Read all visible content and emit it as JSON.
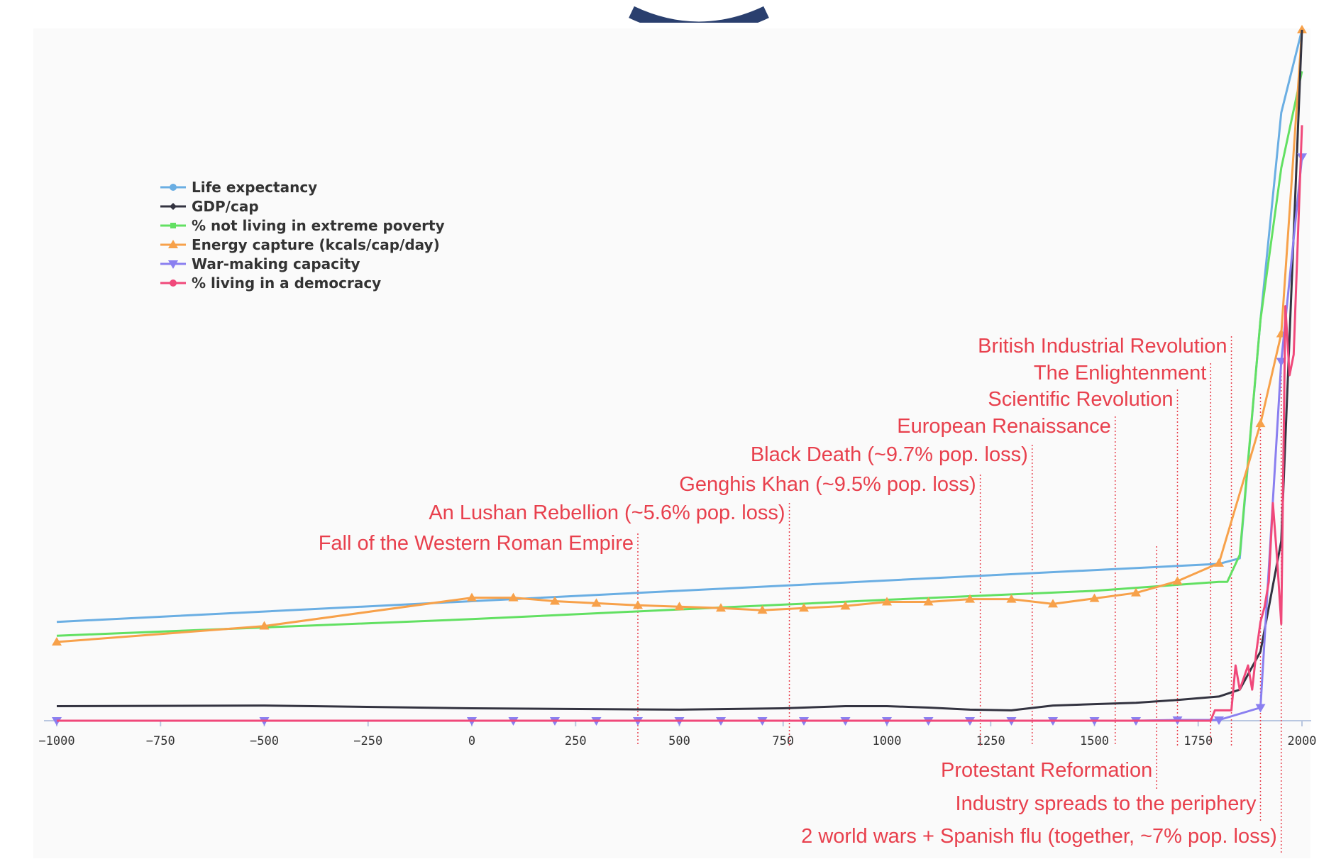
{
  "colors": {
    "life": "#6aaee3",
    "gdp": "#333340",
    "poverty": "#62e062",
    "energy": "#f7a14a",
    "war": "#8a7ff0",
    "democracy": "#f0487a",
    "event": "#e8404d",
    "axis": "#b9c7e0"
  },
  "chart_data": {
    "type": "line",
    "title": "",
    "xlabel": "",
    "ylabel": "",
    "xlim": [
      -1000,
      2000
    ],
    "x_ticks": [
      -1000,
      -750,
      -500,
      -250,
      0,
      250,
      500,
      750,
      1000,
      1250,
      1500,
      1750,
      2000
    ],
    "y_axis_shown": false,
    "grid": false,
    "legend_position": "top-left",
    "series": [
      {
        "name": "Life expectancy",
        "key": "life",
        "marker": "circle",
        "points": [
          [
            -1000,
            14.3
          ],
          [
            1800,
            22.7
          ],
          [
            1850,
            23.5
          ],
          [
            1900,
            58
          ],
          [
            1950,
            88
          ],
          [
            2000,
            100
          ]
        ]
      },
      {
        "name": "GDP/cap",
        "key": "gdp",
        "marker": "diamond",
        "points": [
          [
            -1000,
            2.1
          ],
          [
            -500,
            2.2
          ],
          [
            0,
            1.8
          ],
          [
            500,
            1.6
          ],
          [
            750,
            1.8
          ],
          [
            900,
            2.1
          ],
          [
            1000,
            2.1
          ],
          [
            1100,
            1.9
          ],
          [
            1200,
            1.6
          ],
          [
            1300,
            1.5
          ],
          [
            1400,
            2.2
          ],
          [
            1500,
            2.4
          ],
          [
            1600,
            2.6
          ],
          [
            1700,
            3.0
          ],
          [
            1800,
            3.5
          ],
          [
            1850,
            4.5
          ],
          [
            1900,
            10
          ],
          [
            1950,
            26
          ],
          [
            2000,
            100
          ]
        ]
      },
      {
        "name": "% not living in extreme poverty",
        "key": "poverty",
        "marker": "square",
        "points": [
          [
            -1000,
            12.3
          ],
          [
            0,
            14.7
          ],
          [
            1000,
            17.5
          ],
          [
            1500,
            18.8
          ],
          [
            1800,
            20.1
          ],
          [
            1820,
            20.1
          ],
          [
            1850,
            24
          ],
          [
            1900,
            58
          ],
          [
            1950,
            80
          ],
          [
            2000,
            94
          ]
        ]
      },
      {
        "name": "Energy capture (kcals/cap/day)",
        "key": "energy",
        "marker": "triangle-up",
        "points": [
          [
            -1000,
            11.4
          ],
          [
            -500,
            13.7
          ],
          [
            0,
            17.8
          ],
          [
            100,
            17.8
          ],
          [
            200,
            17.3
          ],
          [
            300,
            17.0
          ],
          [
            400,
            16.7
          ],
          [
            500,
            16.5
          ],
          [
            600,
            16.3
          ],
          [
            700,
            16.0
          ],
          [
            800,
            16.3
          ],
          [
            900,
            16.6
          ],
          [
            1000,
            17.2
          ],
          [
            1100,
            17.2
          ],
          [
            1200,
            17.6
          ],
          [
            1300,
            17.6
          ],
          [
            1400,
            16.9
          ],
          [
            1500,
            17.7
          ],
          [
            1600,
            18.5
          ],
          [
            1700,
            20.2
          ],
          [
            1800,
            22.8
          ],
          [
            1900,
            43
          ],
          [
            1950,
            56
          ],
          [
            2000,
            100
          ]
        ]
      },
      {
        "name": "War-making capacity",
        "key": "war",
        "marker": "triangle-down",
        "points": [
          [
            -1000,
            0
          ],
          [
            -500,
            0
          ],
          [
            0,
            0
          ],
          [
            100,
            0
          ],
          [
            200,
            0
          ],
          [
            300,
            0
          ],
          [
            400,
            0
          ],
          [
            500,
            0
          ],
          [
            600,
            0
          ],
          [
            700,
            0
          ],
          [
            800,
            0
          ],
          [
            900,
            0
          ],
          [
            1000,
            0
          ],
          [
            1100,
            0
          ],
          [
            1200,
            0
          ],
          [
            1300,
            0
          ],
          [
            1400,
            0
          ],
          [
            1500,
            0
          ],
          [
            1600,
            0
          ],
          [
            1700,
            0.1
          ],
          [
            1800,
            0.1
          ],
          [
            1900,
            1.9
          ],
          [
            1950,
            52
          ],
          [
            2000,
            81.6
          ]
        ]
      },
      {
        "name": "% living in a democracy",
        "key": "democracy",
        "marker": "circle",
        "points": [
          [
            -1000,
            0
          ],
          [
            1780,
            0
          ],
          [
            1790,
            1.5
          ],
          [
            1830,
            1.5
          ],
          [
            1840,
            8
          ],
          [
            1850,
            4.5
          ],
          [
            1870,
            8
          ],
          [
            1880,
            4.5
          ],
          [
            1890,
            10
          ],
          [
            1900,
            14.3
          ],
          [
            1910,
            16.5
          ],
          [
            1920,
            20.1
          ],
          [
            1930,
            31.5
          ],
          [
            1940,
            23.5
          ],
          [
            1950,
            14
          ],
          [
            1960,
            60
          ],
          [
            1970,
            50
          ],
          [
            1980,
            53
          ],
          [
            2000,
            86.2
          ]
        ]
      }
    ],
    "events": [
      {
        "label": "Fall of the Western Roman Empire",
        "year": 400
      },
      {
        "label": "An Lushan Rebellion (~5.6% pop. loss)",
        "year": 765
      },
      {
        "label": "Genghis Khan (~9.5% pop. loss)",
        "year": 1225
      },
      {
        "label": "Black Death (~9.7% pop. loss)",
        "year": 1350
      },
      {
        "label": "European Renaissance",
        "year": 1550
      },
      {
        "label": "Scientific Revolution",
        "year": 1700
      },
      {
        "label": "The Enlightenment",
        "year": 1780
      },
      {
        "label": "British Industrial Revolution",
        "year": 1830
      },
      {
        "label": "Protestant Reformation",
        "year": 1650
      },
      {
        "label": "Industry spreads to the periphery",
        "year": 1900
      },
      {
        "label": "2 world wars + Spanish flu (together, ~7%  pop. loss)",
        "year": 1950
      }
    ]
  }
}
